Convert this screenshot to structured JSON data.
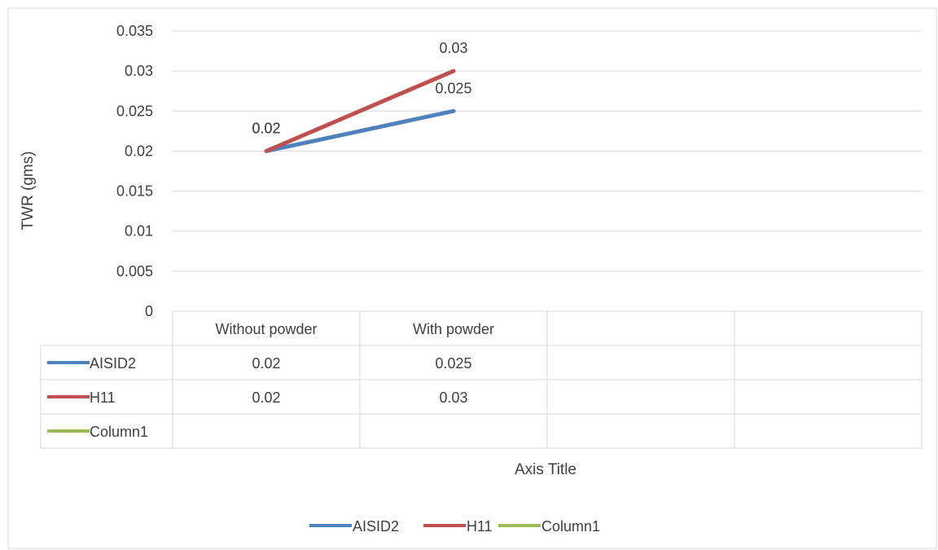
{
  "chart_data": {
    "type": "line",
    "title": "",
    "xlabel": "Axis Title",
    "ylabel": "TWR (gms)",
    "categories": [
      "Without powder",
      "With powder",
      "",
      ""
    ],
    "series": [
      {
        "name": "AISID2",
        "color": "#4F81BD",
        "values": [
          0.02,
          0.025,
          null,
          null
        ],
        "value_labels": [
          "0.02",
          "0.025",
          "",
          ""
        ]
      },
      {
        "name": "H11",
        "color": "#C0504D",
        "values": [
          0.02,
          0.03,
          null,
          null
        ],
        "value_labels": [
          "0.02",
          "0.03",
          "",
          ""
        ]
      },
      {
        "name": "Column1",
        "color": "#9BBB59",
        "values": [
          null,
          null,
          null,
          null
        ],
        "value_labels": [
          "",
          "",
          "",
          ""
        ]
      }
    ],
    "ylim": [
      0,
      0.035
    ],
    "y_ticks": [
      {
        "value": 0,
        "label": "0"
      },
      {
        "value": 0.005,
        "label": "0.005"
      },
      {
        "value": 0.01,
        "label": "0.01"
      },
      {
        "value": 0.015,
        "label": "0.015"
      },
      {
        "value": 0.02,
        "label": "0.02"
      },
      {
        "value": 0.025,
        "label": "0.025"
      },
      {
        "value": 0.03,
        "label": "0.03"
      },
      {
        "value": 0.035,
        "label": "0.035"
      }
    ],
    "grid": true,
    "data_table": true,
    "legend": {
      "placement": "bottom",
      "entries": [
        "AISID2",
        "H11",
        "Column1"
      ]
    }
  }
}
